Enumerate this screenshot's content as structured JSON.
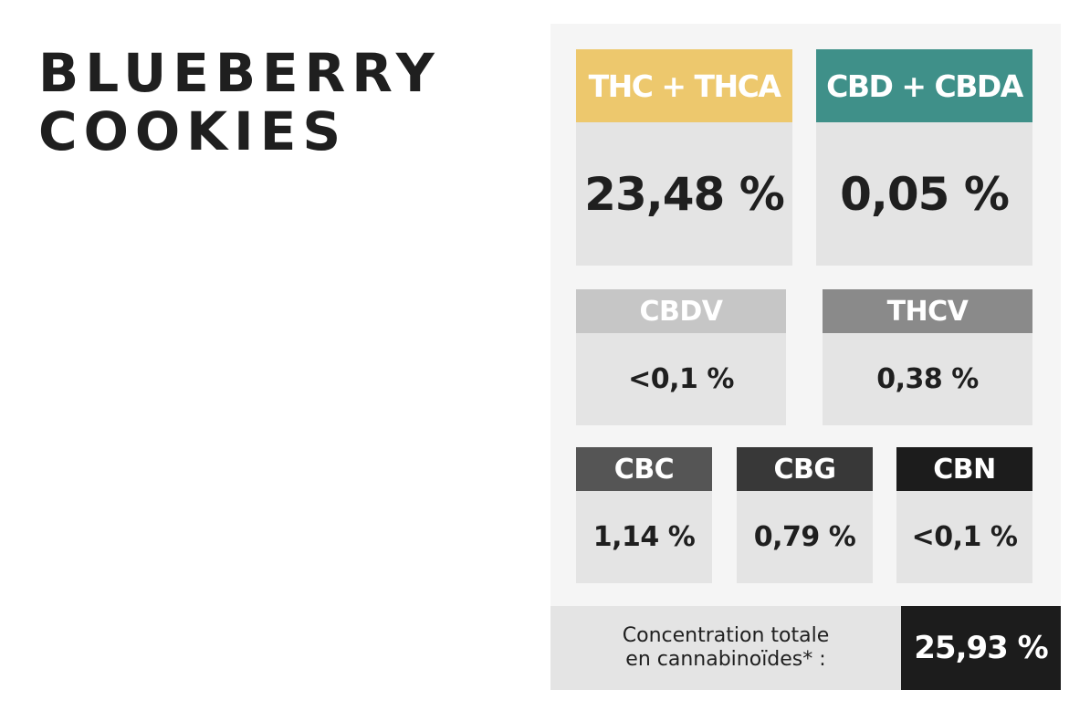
{
  "title": {
    "line1": "BLUEBERRY",
    "line2": "COOKIES"
  },
  "cards": {
    "thc": {
      "label": "THC + THCA",
      "value": "23,48 %",
      "color": "#edc86d"
    },
    "cbd": {
      "label": "CBD + CBDA",
      "value": "0,05 %",
      "color": "#3f9089"
    },
    "cbdv": {
      "label": "CBDV",
      "value": "<0,1 %",
      "color": "#c6c6c6"
    },
    "thcv": {
      "label": "THCV",
      "value": "0,38 %",
      "color": "#8a8a8a"
    },
    "cbc": {
      "label": "CBC",
      "value": "1,14 %",
      "color": "#555555"
    },
    "cbg": {
      "label": "CBG",
      "value": "0,79 %",
      "color": "#383838"
    },
    "cbn": {
      "label": "CBN",
      "value": "<0,1 %",
      "color": "#1c1c1c"
    }
  },
  "total": {
    "label_line1": "Concentration totale",
    "label_line2": "en cannabinoïdes* :",
    "value": "25,93 %"
  }
}
